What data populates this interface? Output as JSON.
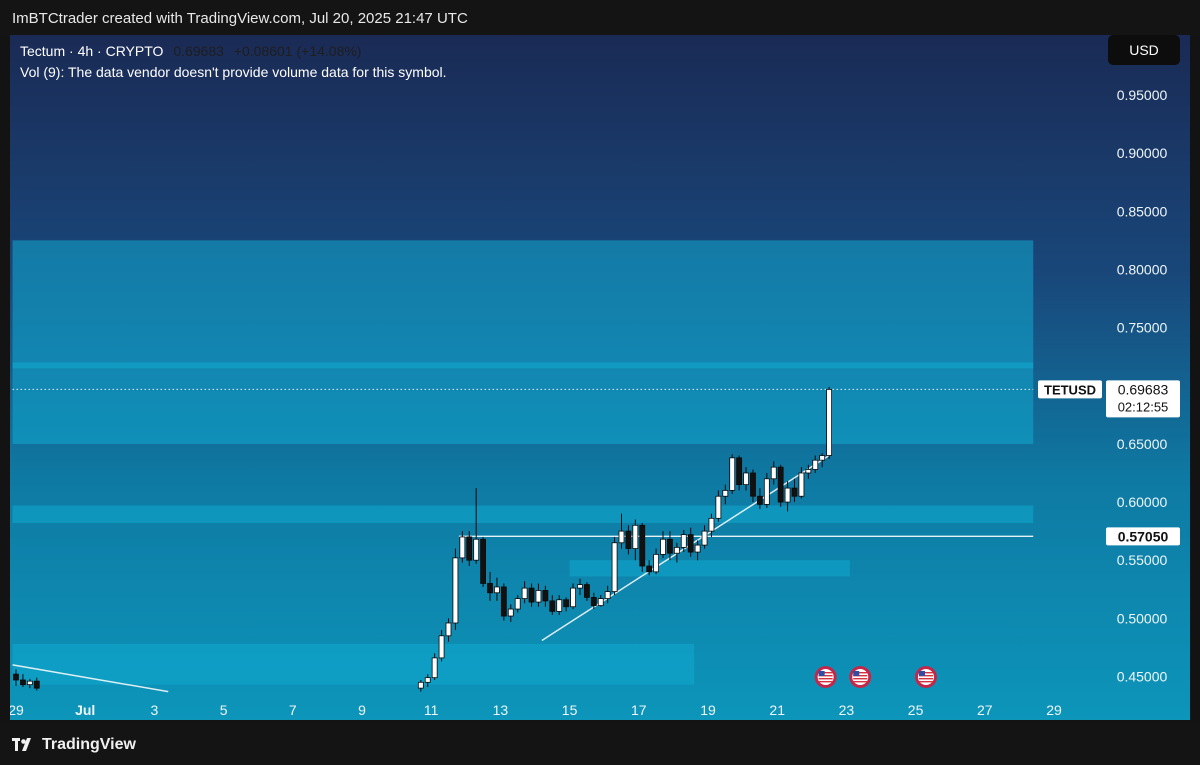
{
  "credit": "ImBTCtrader created with TradingView.com, Jul 20, 2025 21:47 UTC",
  "legend": {
    "symbol": "Tectum · 4h · CRYPTO",
    "price": "0.69683",
    "change": "+0.08601 (+14.08%)",
    "volume_note": "Vol (9): The data vendor doesn't provide volume data for this symbol."
  },
  "currency_button": "USD",
  "price_badge": {
    "ticker": "TETUSD",
    "price": "0.69683",
    "countdown": "02:12:55"
  },
  "level_badge": "0.57050",
  "footer_brand": "TradingView",
  "colors": {
    "bg_top": "#1a2a55",
    "bg_bottom": "#0d95ba",
    "zone": "#10a9cf",
    "candle_up": "#ffffff",
    "candle_down": "#111111"
  },
  "chart_data": {
    "type": "candlestick",
    "interval": "4h",
    "ylim": [
      0.43,
      0.98
    ],
    "y_ticks": [
      "0.95000",
      "0.90000",
      "0.85000",
      "0.80000",
      "0.75000",
      "0.65000",
      "0.60000",
      "0.55000",
      "0.50000",
      "0.45000"
    ],
    "x_range": [
      28.9,
      30.6
    ],
    "x_ticks": [
      {
        "label": "29",
        "x": 29
      },
      {
        "label": "Jul",
        "x": 31
      },
      {
        "label": "3",
        "x": 33
      },
      {
        "label": "5",
        "x": 35
      },
      {
        "label": "7",
        "x": 37
      },
      {
        "label": "9",
        "x": 39
      },
      {
        "label": "11",
        "x": 41
      },
      {
        "label": "13",
        "x": 43
      },
      {
        "label": "15",
        "x": 45
      },
      {
        "label": "17",
        "x": 47
      },
      {
        "label": "19",
        "x": 49
      },
      {
        "label": "21",
        "x": 51
      },
      {
        "label": "23",
        "x": 53
      },
      {
        "label": "25",
        "x": 55
      },
      {
        "label": "27",
        "x": 57
      },
      {
        "label": "29",
        "x": 59
      }
    ],
    "zones": [
      {
        "x0": 28.9,
        "x1": 58.4,
        "y0": 0.65,
        "y1": 0.825
      },
      {
        "x0": 28.9,
        "x1": 58.4,
        "y0": 0.715,
        "y1": 0.72
      },
      {
        "x0": 28.9,
        "x1": 58.4,
        "y0": 0.582,
        "y1": 0.597
      },
      {
        "x0": 45.0,
        "x1": 53.1,
        "y0": 0.536,
        "y1": 0.55
      },
      {
        "x0": 28.9,
        "x1": 48.6,
        "y0": 0.443,
        "y1": 0.478
      }
    ],
    "levels": [
      {
        "price": 0.5705,
        "x0": 41.8,
        "x1": 58.4
      },
      {
        "price": 0.69683,
        "x0": 28.9,
        "x1": 58.4,
        "dotted": true
      }
    ],
    "trendlines": [
      {
        "x0": 44.2,
        "y0": 0.481,
        "x1": 52.5,
        "y1": 0.64
      },
      {
        "x0": 28.9,
        "y0": 0.46,
        "x1": 33.4,
        "y1": 0.437
      }
    ],
    "event_markers": [
      {
        "x": 52.4
      },
      {
        "x": 53.4
      },
      {
        "x": 55.3
      }
    ],
    "candles": [
      {
        "x": 29.0,
        "o": 0.452,
        "h": 0.456,
        "l": 0.442,
        "c": 0.447
      },
      {
        "x": 29.2,
        "o": 0.447,
        "h": 0.452,
        "l": 0.441,
        "c": 0.443
      },
      {
        "x": 29.4,
        "o": 0.443,
        "h": 0.448,
        "l": 0.44,
        "c": 0.446
      },
      {
        "x": 29.6,
        "o": 0.446,
        "h": 0.449,
        "l": 0.438,
        "c": 0.44
      },
      {
        "x": 40.7,
        "o": 0.44,
        "h": 0.447,
        "l": 0.437,
        "c": 0.445
      },
      {
        "x": 40.9,
        "o": 0.445,
        "h": 0.452,
        "l": 0.441,
        "c": 0.449
      },
      {
        "x": 41.1,
        "o": 0.449,
        "h": 0.47,
        "l": 0.447,
        "c": 0.466
      },
      {
        "x": 41.3,
        "o": 0.466,
        "h": 0.49,
        "l": 0.463,
        "c": 0.485
      },
      {
        "x": 41.5,
        "o": 0.485,
        "h": 0.5,
        "l": 0.48,
        "c": 0.496
      },
      {
        "x": 41.7,
        "o": 0.496,
        "h": 0.56,
        "l": 0.49,
        "c": 0.552
      },
      {
        "x": 41.9,
        "o": 0.552,
        "h": 0.575,
        "l": 0.548,
        "c": 0.57
      },
      {
        "x": 42.1,
        "o": 0.57,
        "h": 0.575,
        "l": 0.545,
        "c": 0.55
      },
      {
        "x": 42.3,
        "o": 0.55,
        "h": 0.612,
        "l": 0.547,
        "c": 0.568
      },
      {
        "x": 42.5,
        "o": 0.568,
        "h": 0.57,
        "l": 0.527,
        "c": 0.53
      },
      {
        "x": 42.7,
        "o": 0.53,
        "h": 0.54,
        "l": 0.515,
        "c": 0.522
      },
      {
        "x": 42.9,
        "o": 0.522,
        "h": 0.535,
        "l": 0.515,
        "c": 0.527
      },
      {
        "x": 43.1,
        "o": 0.527,
        "h": 0.53,
        "l": 0.498,
        "c": 0.502
      },
      {
        "x": 43.3,
        "o": 0.502,
        "h": 0.512,
        "l": 0.497,
        "c": 0.508
      },
      {
        "x": 43.5,
        "o": 0.508,
        "h": 0.52,
        "l": 0.505,
        "c": 0.517
      },
      {
        "x": 43.7,
        "o": 0.517,
        "h": 0.532,
        "l": 0.513,
        "c": 0.526
      },
      {
        "x": 43.9,
        "o": 0.526,
        "h": 0.53,
        "l": 0.51,
        "c": 0.514
      },
      {
        "x": 44.1,
        "o": 0.514,
        "h": 0.53,
        "l": 0.51,
        "c": 0.524
      },
      {
        "x": 44.3,
        "o": 0.524,
        "h": 0.528,
        "l": 0.51,
        "c": 0.515
      },
      {
        "x": 44.5,
        "o": 0.515,
        "h": 0.52,
        "l": 0.503,
        "c": 0.506
      },
      {
        "x": 44.7,
        "o": 0.506,
        "h": 0.52,
        "l": 0.503,
        "c": 0.516
      },
      {
        "x": 44.9,
        "o": 0.516,
        "h": 0.518,
        "l": 0.506,
        "c": 0.51
      },
      {
        "x": 45.1,
        "o": 0.51,
        "h": 0.53,
        "l": 0.508,
        "c": 0.526
      },
      {
        "x": 45.3,
        "o": 0.526,
        "h": 0.534,
        "l": 0.52,
        "c": 0.529
      },
      {
        "x": 45.5,
        "o": 0.529,
        "h": 0.531,
        "l": 0.515,
        "c": 0.518
      },
      {
        "x": 45.7,
        "o": 0.518,
        "h": 0.522,
        "l": 0.508,
        "c": 0.511
      },
      {
        "x": 45.9,
        "o": 0.511,
        "h": 0.52,
        "l": 0.51,
        "c": 0.517
      },
      {
        "x": 46.1,
        "o": 0.517,
        "h": 0.528,
        "l": 0.513,
        "c": 0.523
      },
      {
        "x": 46.3,
        "o": 0.523,
        "h": 0.57,
        "l": 0.52,
        "c": 0.565
      },
      {
        "x": 46.5,
        "o": 0.565,
        "h": 0.59,
        "l": 0.56,
        "c": 0.575
      },
      {
        "x": 46.7,
        "o": 0.575,
        "h": 0.58,
        "l": 0.555,
        "c": 0.56
      },
      {
        "x": 46.9,
        "o": 0.56,
        "h": 0.585,
        "l": 0.55,
        "c": 0.58
      },
      {
        "x": 47.1,
        "o": 0.58,
        "h": 0.582,
        "l": 0.54,
        "c": 0.545
      },
      {
        "x": 47.3,
        "o": 0.545,
        "h": 0.55,
        "l": 0.537,
        "c": 0.54
      },
      {
        "x": 47.5,
        "o": 0.54,
        "h": 0.56,
        "l": 0.538,
        "c": 0.555
      },
      {
        "x": 47.7,
        "o": 0.555,
        "h": 0.575,
        "l": 0.552,
        "c": 0.568
      },
      {
        "x": 47.9,
        "o": 0.568,
        "h": 0.575,
        "l": 0.55,
        "c": 0.556
      },
      {
        "x": 48.1,
        "o": 0.556,
        "h": 0.565,
        "l": 0.548,
        "c": 0.561
      },
      {
        "x": 48.3,
        "o": 0.561,
        "h": 0.576,
        "l": 0.557,
        "c": 0.572
      },
      {
        "x": 48.5,
        "o": 0.572,
        "h": 0.578,
        "l": 0.553,
        "c": 0.557
      },
      {
        "x": 48.7,
        "o": 0.557,
        "h": 0.567,
        "l": 0.55,
        "c": 0.563
      },
      {
        "x": 48.9,
        "o": 0.563,
        "h": 0.58,
        "l": 0.56,
        "c": 0.575
      },
      {
        "x": 49.1,
        "o": 0.575,
        "h": 0.59,
        "l": 0.57,
        "c": 0.586
      },
      {
        "x": 49.3,
        "o": 0.586,
        "h": 0.61,
        "l": 0.583,
        "c": 0.605
      },
      {
        "x": 49.5,
        "o": 0.605,
        "h": 0.615,
        "l": 0.598,
        "c": 0.61
      },
      {
        "x": 49.7,
        "o": 0.61,
        "h": 0.641,
        "l": 0.607,
        "c": 0.638
      },
      {
        "x": 49.9,
        "o": 0.638,
        "h": 0.64,
        "l": 0.61,
        "c": 0.615
      },
      {
        "x": 50.1,
        "o": 0.615,
        "h": 0.63,
        "l": 0.61,
        "c": 0.625
      },
      {
        "x": 50.3,
        "o": 0.625,
        "h": 0.628,
        "l": 0.6,
        "c": 0.605
      },
      {
        "x": 50.5,
        "o": 0.605,
        "h": 0.612,
        "l": 0.594,
        "c": 0.598
      },
      {
        "x": 50.7,
        "o": 0.598,
        "h": 0.625,
        "l": 0.595,
        "c": 0.62
      },
      {
        "x": 50.9,
        "o": 0.62,
        "h": 0.635,
        "l": 0.615,
        "c": 0.63
      },
      {
        "x": 51.1,
        "o": 0.63,
        "h": 0.632,
        "l": 0.596,
        "c": 0.6
      },
      {
        "x": 51.3,
        "o": 0.6,
        "h": 0.618,
        "l": 0.592,
        "c": 0.612
      },
      {
        "x": 51.5,
        "o": 0.612,
        "h": 0.62,
        "l": 0.6,
        "c": 0.605
      },
      {
        "x": 51.7,
        "o": 0.605,
        "h": 0.63,
        "l": 0.603,
        "c": 0.625
      },
      {
        "x": 51.9,
        "o": 0.625,
        "h": 0.632,
        "l": 0.62,
        "c": 0.628
      },
      {
        "x": 52.1,
        "o": 0.628,
        "h": 0.64,
        "l": 0.625,
        "c": 0.636
      },
      {
        "x": 52.3,
        "o": 0.636,
        "h": 0.642,
        "l": 0.63,
        "c": 0.64
      },
      {
        "x": 52.5,
        "o": 0.64,
        "h": 0.699,
        "l": 0.637,
        "c": 0.69683
      }
    ]
  }
}
